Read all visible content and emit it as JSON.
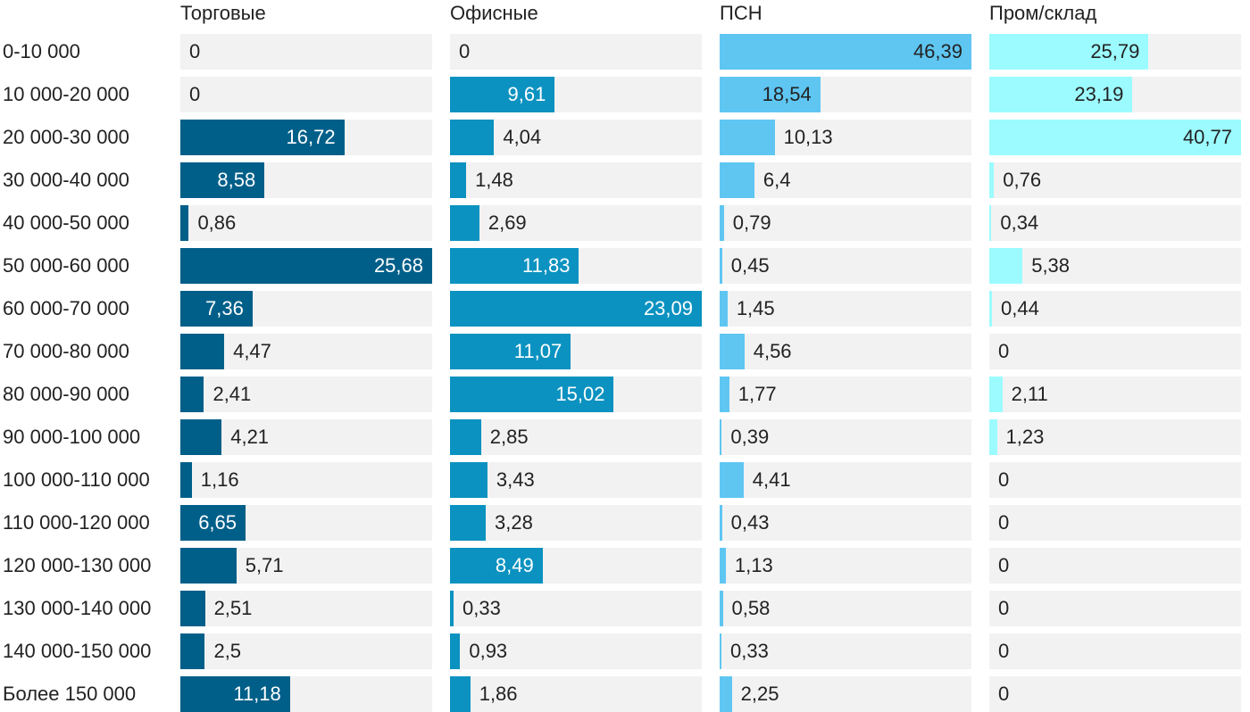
{
  "chart_data": {
    "type": "bar",
    "orientation": "horizontal",
    "layout": "small-multiples",
    "categories": [
      "0-10 000",
      "10 000-20 000",
      "20 000-30 000",
      "30 000-40 000",
      "40 000-50 000",
      "50 000-60 000",
      "60 000-70 000",
      "70 000-80 000",
      "80 000-90 000",
      "90 000-100 000",
      "100 000-110 000",
      "110 000-120 000",
      "120 000-130 000",
      "130 000-140 000",
      "140 000-150 000",
      "Более 150 000"
    ],
    "series": [
      {
        "name": "Торговые",
        "color": "#005f89",
        "label_color_inside": "#ffffff",
        "max": 25.68,
        "values": [
          0,
          0,
          16.72,
          8.58,
          0.86,
          25.68,
          7.36,
          4.47,
          2.41,
          4.21,
          1.16,
          6.65,
          5.71,
          2.51,
          2.5,
          11.18
        ],
        "labels": [
          "0",
          "0",
          "16,72",
          "8,58",
          "0,86",
          "25,68",
          "7,36",
          "4,47",
          "2,41",
          "4,21",
          "1,16",
          "6,65",
          "5,71",
          "2,51",
          "2,5",
          "11,18"
        ]
      },
      {
        "name": "Офисные",
        "color": "#0b92c0",
        "label_color_inside": "#ffffff",
        "max": 23.09,
        "values": [
          0,
          9.61,
          4.04,
          1.48,
          2.69,
          11.83,
          23.09,
          11.07,
          15.02,
          2.85,
          3.43,
          3.28,
          8.49,
          0.33,
          0.93,
          1.86
        ],
        "labels": [
          "0",
          "9,61",
          "4,04",
          "1,48",
          "2,69",
          "11,83",
          "23,09",
          "11,07",
          "15,02",
          "2,85",
          "3,43",
          "3,28",
          "8,49",
          "0,33",
          "0,93",
          "1,86"
        ]
      },
      {
        "name": "ПСН",
        "color": "#5fc6f2",
        "label_color_inside": "#222222",
        "max": 46.39,
        "values": [
          46.39,
          18.54,
          10.13,
          6.4,
          0.79,
          0.45,
          1.45,
          4.56,
          1.77,
          0.39,
          4.41,
          0.43,
          1.13,
          0.58,
          0.33,
          2.25
        ],
        "labels": [
          "46,39",
          "18,54",
          "10,13",
          "6,4",
          "0,79",
          "0,45",
          "1,45",
          "4,56",
          "1,77",
          "0,39",
          "4,41",
          "0,43",
          "1,13",
          "0,58",
          "0,33",
          "2,25"
        ]
      },
      {
        "name": "Пром/склад",
        "color": "#9cfbff",
        "label_color_inside": "#222222",
        "max": 40.77,
        "values": [
          25.79,
          23.19,
          40.77,
          0.76,
          0.34,
          5.38,
          0.44,
          0,
          2.11,
          1.23,
          0,
          0,
          0,
          0,
          0,
          0
        ],
        "labels": [
          "25,79",
          "23,19",
          "40,77",
          "0,76",
          "0,34",
          "5,38",
          "0,44",
          "0",
          "2,11",
          "1,23",
          "0",
          "0",
          "0",
          "0",
          "0",
          "0"
        ]
      }
    ]
  }
}
